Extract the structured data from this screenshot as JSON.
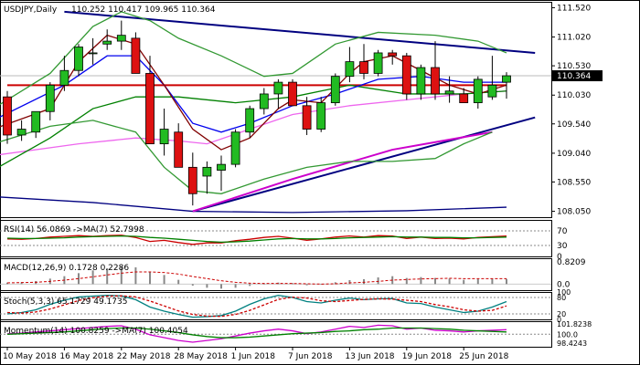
{
  "chart_data": [
    {
      "type": "candlestick",
      "header": {
        "symbol": "USDJPY,Daily",
        "ohlc": "110.252 110.417 109.965 110.364"
      },
      "ylim": [
        107.95,
        111.62
      ],
      "y_ticks": [
        "111.520",
        "111.020",
        "110.530",
        "110.030",
        "109.540",
        "109.040",
        "108.550",
        "108.050"
      ],
      "last_price_label": "110.364",
      "x_labels": [
        {
          "index": 0,
          "label": "10 May 2018"
        },
        {
          "index": 4,
          "label": "16 May 2018"
        },
        {
          "index": 8,
          "label": "22 May 2018"
        },
        {
          "index": 12,
          "label": "28 May 2018"
        },
        {
          "index": 16,
          "label": "1 Jun 2018"
        },
        {
          "index": 20,
          "label": "7 Jun 2018"
        },
        {
          "index": 24,
          "label": "13 Jun 2018"
        },
        {
          "index": 28,
          "label": "19 Jun 2018"
        },
        {
          "index": 32,
          "label": "25 Jun 2018"
        }
      ],
      "candles": [
        {
          "o": 110.0,
          "h": 110.1,
          "l": 109.2,
          "c": 109.35
        },
        {
          "o": 109.35,
          "h": 109.6,
          "l": 109.25,
          "c": 109.45
        },
        {
          "o": 109.4,
          "h": 109.75,
          "l": 109.3,
          "c": 109.75
        },
        {
          "o": 109.75,
          "h": 110.25,
          "l": 109.6,
          "c": 110.2
        },
        {
          "o": 110.2,
          "h": 110.7,
          "l": 110.1,
          "c": 110.45
        },
        {
          "o": 110.45,
          "h": 110.9,
          "l": 110.35,
          "c": 110.85
        },
        {
          "o": 110.75,
          "h": 111.0,
          "l": 110.55,
          "c": 110.75
        },
        {
          "o": 110.9,
          "h": 111.15,
          "l": 110.8,
          "c": 110.95
        },
        {
          "o": 110.95,
          "h": 111.3,
          "l": 110.8,
          "c": 111.05
        },
        {
          "o": 111.0,
          "h": 111.1,
          "l": 110.4,
          "c": 110.4
        },
        {
          "o": 110.4,
          "h": 110.7,
          "l": 109.2,
          "c": 109.2
        },
        {
          "o": 109.2,
          "h": 109.8,
          "l": 109.0,
          "c": 109.45
        },
        {
          "o": 109.4,
          "h": 109.55,
          "l": 108.8,
          "c": 108.8
        },
        {
          "o": 108.8,
          "h": 109.05,
          "l": 108.15,
          "c": 108.35
        },
        {
          "o": 108.65,
          "h": 108.9,
          "l": 108.35,
          "c": 108.8
        },
        {
          "o": 108.75,
          "h": 109.0,
          "l": 108.4,
          "c": 108.85
        },
        {
          "o": 108.85,
          "h": 109.45,
          "l": 108.8,
          "c": 109.4
        },
        {
          "o": 109.4,
          "h": 109.85,
          "l": 109.3,
          "c": 109.8
        },
        {
          "o": 109.8,
          "h": 110.15,
          "l": 109.7,
          "c": 110.05
        },
        {
          "o": 110.05,
          "h": 110.3,
          "l": 109.8,
          "c": 110.25
        },
        {
          "o": 110.25,
          "h": 110.3,
          "l": 109.85,
          "c": 109.85
        },
        {
          "o": 109.85,
          "h": 110.0,
          "l": 109.35,
          "c": 109.45
        },
        {
          "o": 109.45,
          "h": 110.0,
          "l": 109.4,
          "c": 109.9
        },
        {
          "o": 109.9,
          "h": 110.4,
          "l": 109.85,
          "c": 110.35
        },
        {
          "o": 110.35,
          "h": 110.85,
          "l": 110.25,
          "c": 110.6
        },
        {
          "o": 110.6,
          "h": 110.9,
          "l": 110.3,
          "c": 110.4
        },
        {
          "o": 110.4,
          "h": 110.8,
          "l": 110.35,
          "c": 110.75
        },
        {
          "o": 110.75,
          "h": 110.8,
          "l": 110.55,
          "c": 110.7
        },
        {
          "o": 110.7,
          "h": 110.75,
          "l": 109.95,
          "c": 110.05
        },
        {
          "o": 110.05,
          "h": 110.55,
          "l": 109.95,
          "c": 110.5
        },
        {
          "o": 110.5,
          "h": 110.95,
          "l": 109.95,
          "c": 110.05
        },
        {
          "o": 110.05,
          "h": 110.35,
          "l": 109.9,
          "c": 110.1
        },
        {
          "o": 110.05,
          "h": 110.15,
          "l": 109.9,
          "c": 109.9
        },
        {
          "o": 109.9,
          "h": 110.35,
          "l": 109.8,
          "c": 110.3
        },
        {
          "o": 110.0,
          "h": 110.7,
          "l": 109.95,
          "c": 110.2
        },
        {
          "o": 110.25,
          "h": 110.42,
          "l": 109.97,
          "c": 110.36
        }
      ],
      "price_lines": [
        {
          "name": "horizontal-resistance",
          "color": "#cc0000",
          "points": [
            [
              0,
              110.2
            ],
            [
              35,
              110.2
            ]
          ]
        },
        {
          "name": "upper-trendline",
          "color": "#000080",
          "points": [
            [
              4,
              111.45
            ],
            [
              37,
              110.75
            ]
          ]
        },
        {
          "name": "lower-trendline",
          "color": "#000080",
          "points": [
            [
              13,
              108.05
            ],
            [
              37,
              109.65
            ]
          ]
        },
        {
          "name": "lower-blue-ma",
          "color": "#000080",
          "points": [
            [
              -1,
              108.3
            ],
            [
              6,
              108.2
            ],
            [
              13,
              108.05
            ],
            [
              20,
              108.03
            ],
            [
              28,
              108.06
            ],
            [
              35,
              108.12
            ]
          ]
        },
        {
          "name": "magenta-ma",
          "color": "#ee66ee",
          "points": [
            [
              -1,
              109.0
            ],
            [
              5,
              109.2
            ],
            [
              9,
              109.3
            ],
            [
              12,
              109.25
            ],
            [
              14,
              109.2
            ],
            [
              17,
              109.45
            ],
            [
              20,
              109.7
            ],
            [
              24,
              109.85
            ],
            [
              28,
              109.95
            ],
            [
              32,
              110.05
            ],
            [
              35,
              110.1
            ]
          ]
        },
        {
          "name": "magenta-trend",
          "color": "#cc00cc",
          "points": [
            [
              13,
              108.05
            ],
            [
              20,
              108.6
            ],
            [
              27,
              109.1
            ],
            [
              34,
              109.4
            ]
          ]
        },
        {
          "name": "green-ma",
          "color": "#008000",
          "points": [
            [
              -1,
              108.75
            ],
            [
              3,
              109.3
            ],
            [
              6,
              109.8
            ],
            [
              9,
              110.0
            ],
            [
              12,
              110.0
            ],
            [
              16,
              109.9
            ],
            [
              20,
              110.0
            ],
            [
              24,
              110.2
            ],
            [
              28,
              110.05
            ],
            [
              32,
              110.05
            ],
            [
              35,
              110.1
            ]
          ]
        },
        {
          "name": "blue-ma",
          "color": "#0000ee",
          "points": [
            [
              -1,
              109.6
            ],
            [
              4,
              110.2
            ],
            [
              7,
              110.7
            ],
            [
              9,
              110.7
            ],
            [
              11,
              110.2
            ],
            [
              13,
              109.55
            ],
            [
              15,
              109.4
            ],
            [
              17,
              109.55
            ],
            [
              20,
              109.85
            ],
            [
              23,
              110.05
            ],
            [
              26,
              110.3
            ],
            [
              29,
              110.35
            ],
            [
              32,
              110.25
            ],
            [
              35,
              110.25
            ]
          ]
        },
        {
          "name": "darkred-ma",
          "color": "#800000",
          "points": [
            [
              -1,
              109.45
            ],
            [
              3,
              109.8
            ],
            [
              5,
              110.6
            ],
            [
              7,
              111.05
            ],
            [
              9,
              110.9
            ],
            [
              11,
              110.2
            ],
            [
              13,
              109.45
            ],
            [
              15,
              109.1
            ],
            [
              17,
              109.3
            ],
            [
              19,
              109.8
            ],
            [
              20,
              109.95
            ],
            [
              22,
              109.9
            ],
            [
              24,
              110.4
            ],
            [
              25,
              110.6
            ],
            [
              27,
              110.7
            ],
            [
              29,
              110.45
            ],
            [
              31,
              110.2
            ],
            [
              33,
              110.05
            ],
            [
              35,
              110.2
            ]
          ]
        },
        {
          "name": "bollinger-upper",
          "color": "#339933",
          "points": [
            [
              -1,
              109.8
            ],
            [
              3,
              110.4
            ],
            [
              6,
              111.2
            ],
            [
              8,
              111.45
            ],
            [
              10,
              111.3
            ],
            [
              12,
              111.0
            ],
            [
              15,
              110.7
            ],
            [
              18,
              110.35
            ],
            [
              20,
              110.4
            ],
            [
              23,
              110.9
            ],
            [
              26,
              111.1
            ],
            [
              30,
              111.05
            ],
            [
              33,
              110.95
            ],
            [
              35,
              110.75
            ]
          ]
        },
        {
          "name": "bollinger-lower",
          "color": "#339933",
          "points": [
            [
              -1,
              109.2
            ],
            [
              3,
              109.5
            ],
            [
              6,
              109.6
            ],
            [
              9,
              109.4
            ],
            [
              11,
              108.8
            ],
            [
              13,
              108.4
            ],
            [
              15,
              108.35
            ],
            [
              18,
              108.6
            ],
            [
              21,
              108.8
            ],
            [
              24,
              108.9
            ],
            [
              27,
              108.9
            ],
            [
              30,
              108.95
            ],
            [
              32,
              109.2
            ],
            [
              34,
              109.4
            ]
          ]
        }
      ]
    },
    {
      "type": "line",
      "label": "RSI(14) 56.0869 ->MA(7) 52.7998",
      "ylim": [
        0,
        100
      ],
      "y_ticks": [
        "70",
        "30",
        "0"
      ],
      "series": [
        {
          "color": "#cc0000",
          "values": [
            48,
            47,
            49,
            53,
            55,
            57,
            55,
            57,
            58,
            52,
            41,
            44,
            38,
            33,
            37,
            37,
            43,
            47,
            52,
            55,
            50,
            44,
            48,
            53,
            56,
            53,
            57,
            56,
            49,
            53,
            49,
            50,
            48,
            52,
            54,
            56
          ]
        },
        {
          "color": "#008000",
          "values": [
            50,
            49,
            49,
            50,
            51,
            53,
            54,
            55,
            56,
            55,
            52,
            50,
            47,
            44,
            41,
            39,
            40,
            42,
            45,
            48,
            49,
            48,
            48,
            49,
            51,
            52,
            53,
            54,
            53,
            53,
            52,
            52,
            51,
            51,
            52,
            53
          ]
        }
      ]
    },
    {
      "type": "bar",
      "label": "MACD(12,26,9) 0.1728 0.2286",
      "y_ticks": [
        "0.8209",
        "0.0"
      ],
      "ylim": [
        -0.2,
        0.85
      ],
      "values": [
        0.05,
        0.06,
        0.1,
        0.18,
        0.26,
        0.36,
        0.45,
        0.52,
        0.58,
        0.55,
        0.4,
        0.3,
        0.14,
        -0.05,
        -0.12,
        -0.15,
        -0.12,
        -0.06,
        0.0,
        0.05,
        0.03,
        -0.04,
        -0.02,
        0.06,
        0.13,
        0.16,
        0.22,
        0.26,
        0.2,
        0.23,
        0.2,
        0.18,
        0.14,
        0.16,
        0.17,
        0.17
      ],
      "signal": [
        0.04,
        0.05,
        0.06,
        0.09,
        0.13,
        0.18,
        0.24,
        0.3,
        0.36,
        0.4,
        0.4,
        0.38,
        0.33,
        0.25,
        0.18,
        0.11,
        0.06,
        0.03,
        0.02,
        0.02,
        0.02,
        0.01,
        0.0,
        0.01,
        0.04,
        0.06,
        0.09,
        0.13,
        0.15,
        0.17,
        0.18,
        0.19,
        0.18,
        0.18,
        0.18,
        0.18
      ]
    },
    {
      "type": "line",
      "label": "Stoch(5,3,3) 65.1729 49.1735",
      "ylim": [
        0,
        100
      ],
      "y_ticks": [
        "100",
        "80",
        "20",
        "0"
      ],
      "series": [
        {
          "color": "#008080",
          "values": [
            20,
            25,
            35,
            55,
            70,
            82,
            85,
            88,
            86,
            72,
            45,
            30,
            18,
            8,
            10,
            14,
            30,
            55,
            75,
            88,
            80,
            65,
            60,
            70,
            78,
            72,
            75,
            76,
            60,
            58,
            45,
            35,
            25,
            30,
            45,
            65
          ]
        },
        {
          "color": "#cc0000",
          "dashed": true,
          "values": [
            25,
            23,
            27,
            38,
            53,
            69,
            79,
            85,
            86,
            82,
            67,
            49,
            31,
            18,
            12,
            11,
            18,
            33,
            53,
            73,
            81,
            78,
            68,
            65,
            69,
            73,
            75,
            74,
            70,
            65,
            54,
            46,
            35,
            30,
            33,
            49
          ]
        }
      ]
    },
    {
      "type": "line",
      "label": "Momentum(14) 100.8259 ->MA(7) 100.4054",
      "ylim": [
        97.8,
        102.3
      ],
      "y_ticks": [
        "101.8238",
        "100.0",
        "98.4243"
      ],
      "series": [
        {
          "color": "#cc00cc",
          "values": [
            100.1,
            100.2,
            100.4,
            100.6,
            100.8,
            101.0,
            101.2,
            101.4,
            101.5,
            100.9,
            99.9,
            99.4,
            98.9,
            98.6,
            98.9,
            99.2,
            99.7,
            100.2,
            100.6,
            100.9,
            100.6,
            100.1,
            100.4,
            100.9,
            101.4,
            101.2,
            101.6,
            101.5,
            100.9,
            101.1,
            100.7,
            100.6,
            100.4,
            100.6,
            100.7,
            100.8
          ]
        },
        {
          "color": "#008000",
          "values": [
            100.0,
            100.1,
            100.2,
            100.3,
            100.4,
            100.6,
            100.8,
            101.0,
            101.1,
            101.1,
            100.9,
            100.6,
            100.3,
            99.9,
            99.6,
            99.4,
            99.4,
            99.5,
            99.7,
            99.9,
            100.1,
            100.2,
            100.3,
            100.5,
            100.6,
            100.8,
            100.9,
            101.1,
            101.1,
            101.1,
            101.0,
            100.9,
            100.7,
            100.6,
            100.5,
            100.4
          ]
        }
      ]
    }
  ]
}
